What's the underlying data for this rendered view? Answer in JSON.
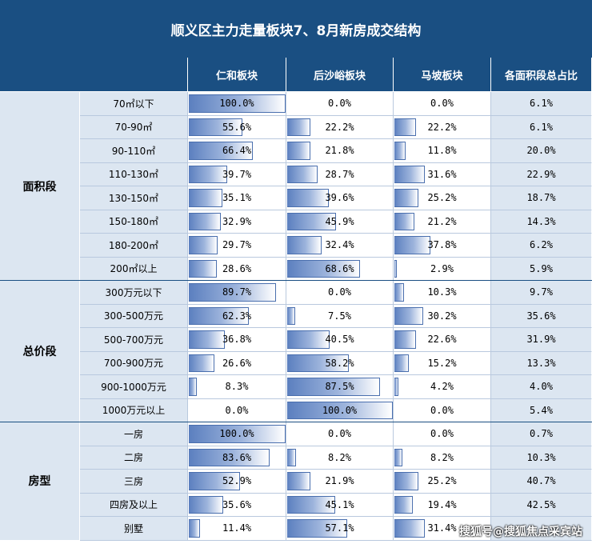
{
  "title": "顺义区主力走量板块7、8月新房成交结构",
  "header": {
    "col1": "仁和板块",
    "col2": "后沙峪板块",
    "col3": "马坡板块",
    "col4": "各面积段总占比"
  },
  "watermark": "搜狐号@搜狐焦点采宾站",
  "colors": {
    "header_bg": "#1a4f82",
    "label_bg": "#dce6f1",
    "bar": "#5b7fbf"
  },
  "chart_data": {
    "type": "table",
    "columns": [
      "仁和板块",
      "后沙峪板块",
      "马坡板块",
      "各面积段总占比"
    ],
    "groups": [
      {
        "name": "面积段",
        "rows": [
          {
            "label": "70㎡以下",
            "values": [
              "100.0%",
              "0.0%",
              "0.0%",
              "6.1%"
            ]
          },
          {
            "label": "70-90㎡",
            "values": [
              "55.6%",
              "22.2%",
              "22.2%",
              "6.1%"
            ]
          },
          {
            "label": "90-110㎡",
            "values": [
              "66.4%",
              "21.8%",
              "11.8%",
              "20.0%"
            ]
          },
          {
            "label": "110-130㎡",
            "values": [
              "39.7%",
              "28.7%",
              "31.6%",
              "22.9%"
            ]
          },
          {
            "label": "130-150㎡",
            "values": [
              "35.1%",
              "39.6%",
              "25.2%",
              "18.7%"
            ]
          },
          {
            "label": "150-180㎡",
            "values": [
              "32.9%",
              "45.9%",
              "21.2%",
              "14.3%"
            ]
          },
          {
            "label": "180-200㎡",
            "values": [
              "29.7%",
              "32.4%",
              "37.8%",
              "6.2%"
            ]
          },
          {
            "label": "200㎡以上",
            "values": [
              "28.6%",
              "68.6%",
              "2.9%",
              "5.9%"
            ]
          }
        ]
      },
      {
        "name": "总价段",
        "rows": [
          {
            "label": "300万元以下",
            "values": [
              "89.7%",
              "0.0%",
              "10.3%",
              "9.7%"
            ]
          },
          {
            "label": "300-500万元",
            "values": [
              "62.3%",
              "7.5%",
              "30.2%",
              "35.6%"
            ]
          },
          {
            "label": "500-700万元",
            "values": [
              "36.8%",
              "40.5%",
              "22.6%",
              "31.9%"
            ]
          },
          {
            "label": "700-900万元",
            "values": [
              "26.6%",
              "58.2%",
              "15.2%",
              "13.3%"
            ]
          },
          {
            "label": "900-1000万元",
            "values": [
              "8.3%",
              "87.5%",
              "4.2%",
              "4.0%"
            ]
          },
          {
            "label": "1000万元以上",
            "values": [
              "0.0%",
              "100.0%",
              "0.0%",
              "5.4%"
            ]
          }
        ]
      },
      {
        "name": "房型",
        "rows": [
          {
            "label": "一房",
            "values": [
              "100.0%",
              "0.0%",
              "0.0%",
              "0.7%"
            ]
          },
          {
            "label": "二房",
            "values": [
              "83.6%",
              "8.2%",
              "8.2%",
              "10.3%"
            ]
          },
          {
            "label": "三房",
            "values": [
              "52.9%",
              "21.9%",
              "25.2%",
              "40.7%"
            ]
          },
          {
            "label": "四房及以上",
            "values": [
              "35.6%",
              "45.1%",
              "19.4%",
              "42.5%"
            ]
          },
          {
            "label": "别墅",
            "values": [
              "11.4%",
              "57.1%",
              "31.4%",
              ""
            ]
          }
        ]
      }
    ]
  }
}
